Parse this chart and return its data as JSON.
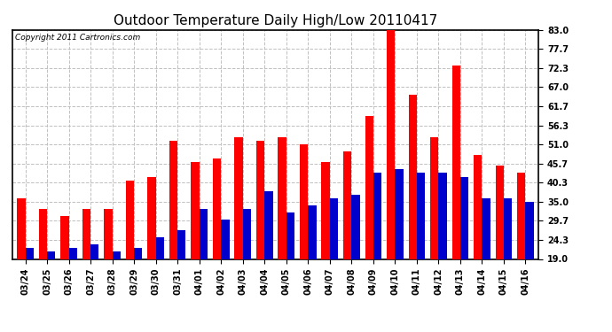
{
  "title": "Outdoor Temperature Daily High/Low 20110417",
  "copyright": "Copyright 2011 Cartronics.com",
  "dates": [
    "03/24",
    "03/25",
    "03/26",
    "03/27",
    "03/28",
    "03/29",
    "03/30",
    "03/31",
    "04/01",
    "04/02",
    "04/03",
    "04/04",
    "04/05",
    "04/06",
    "04/07",
    "04/08",
    "04/09",
    "04/10",
    "04/11",
    "04/12",
    "04/13",
    "04/14",
    "04/15",
    "04/16"
  ],
  "highs": [
    36,
    33,
    31,
    33,
    33,
    41,
    42,
    52,
    46,
    47,
    53,
    52,
    53,
    51,
    46,
    49,
    59,
    83,
    65,
    53,
    73,
    48,
    45,
    43
  ],
  "lows": [
    22,
    21,
    22,
    23,
    21,
    22,
    25,
    27,
    33,
    30,
    33,
    38,
    32,
    34,
    36,
    37,
    43,
    44,
    43,
    43,
    42,
    36,
    36,
    35
  ],
  "high_color": "#FF0000",
  "low_color": "#0000CC",
  "background_color": "#FFFFFF",
  "grid_color": "#C0C0C0",
  "yticks": [
    19.0,
    24.3,
    29.7,
    35.0,
    40.3,
    45.7,
    51.0,
    56.3,
    61.7,
    67.0,
    72.3,
    77.7,
    83.0
  ],
  "ymin": 19.0,
  "ymax": 83.0,
  "title_fontsize": 11,
  "copyright_fontsize": 6.5,
  "tick_fontsize": 7,
  "bar_width": 0.38
}
